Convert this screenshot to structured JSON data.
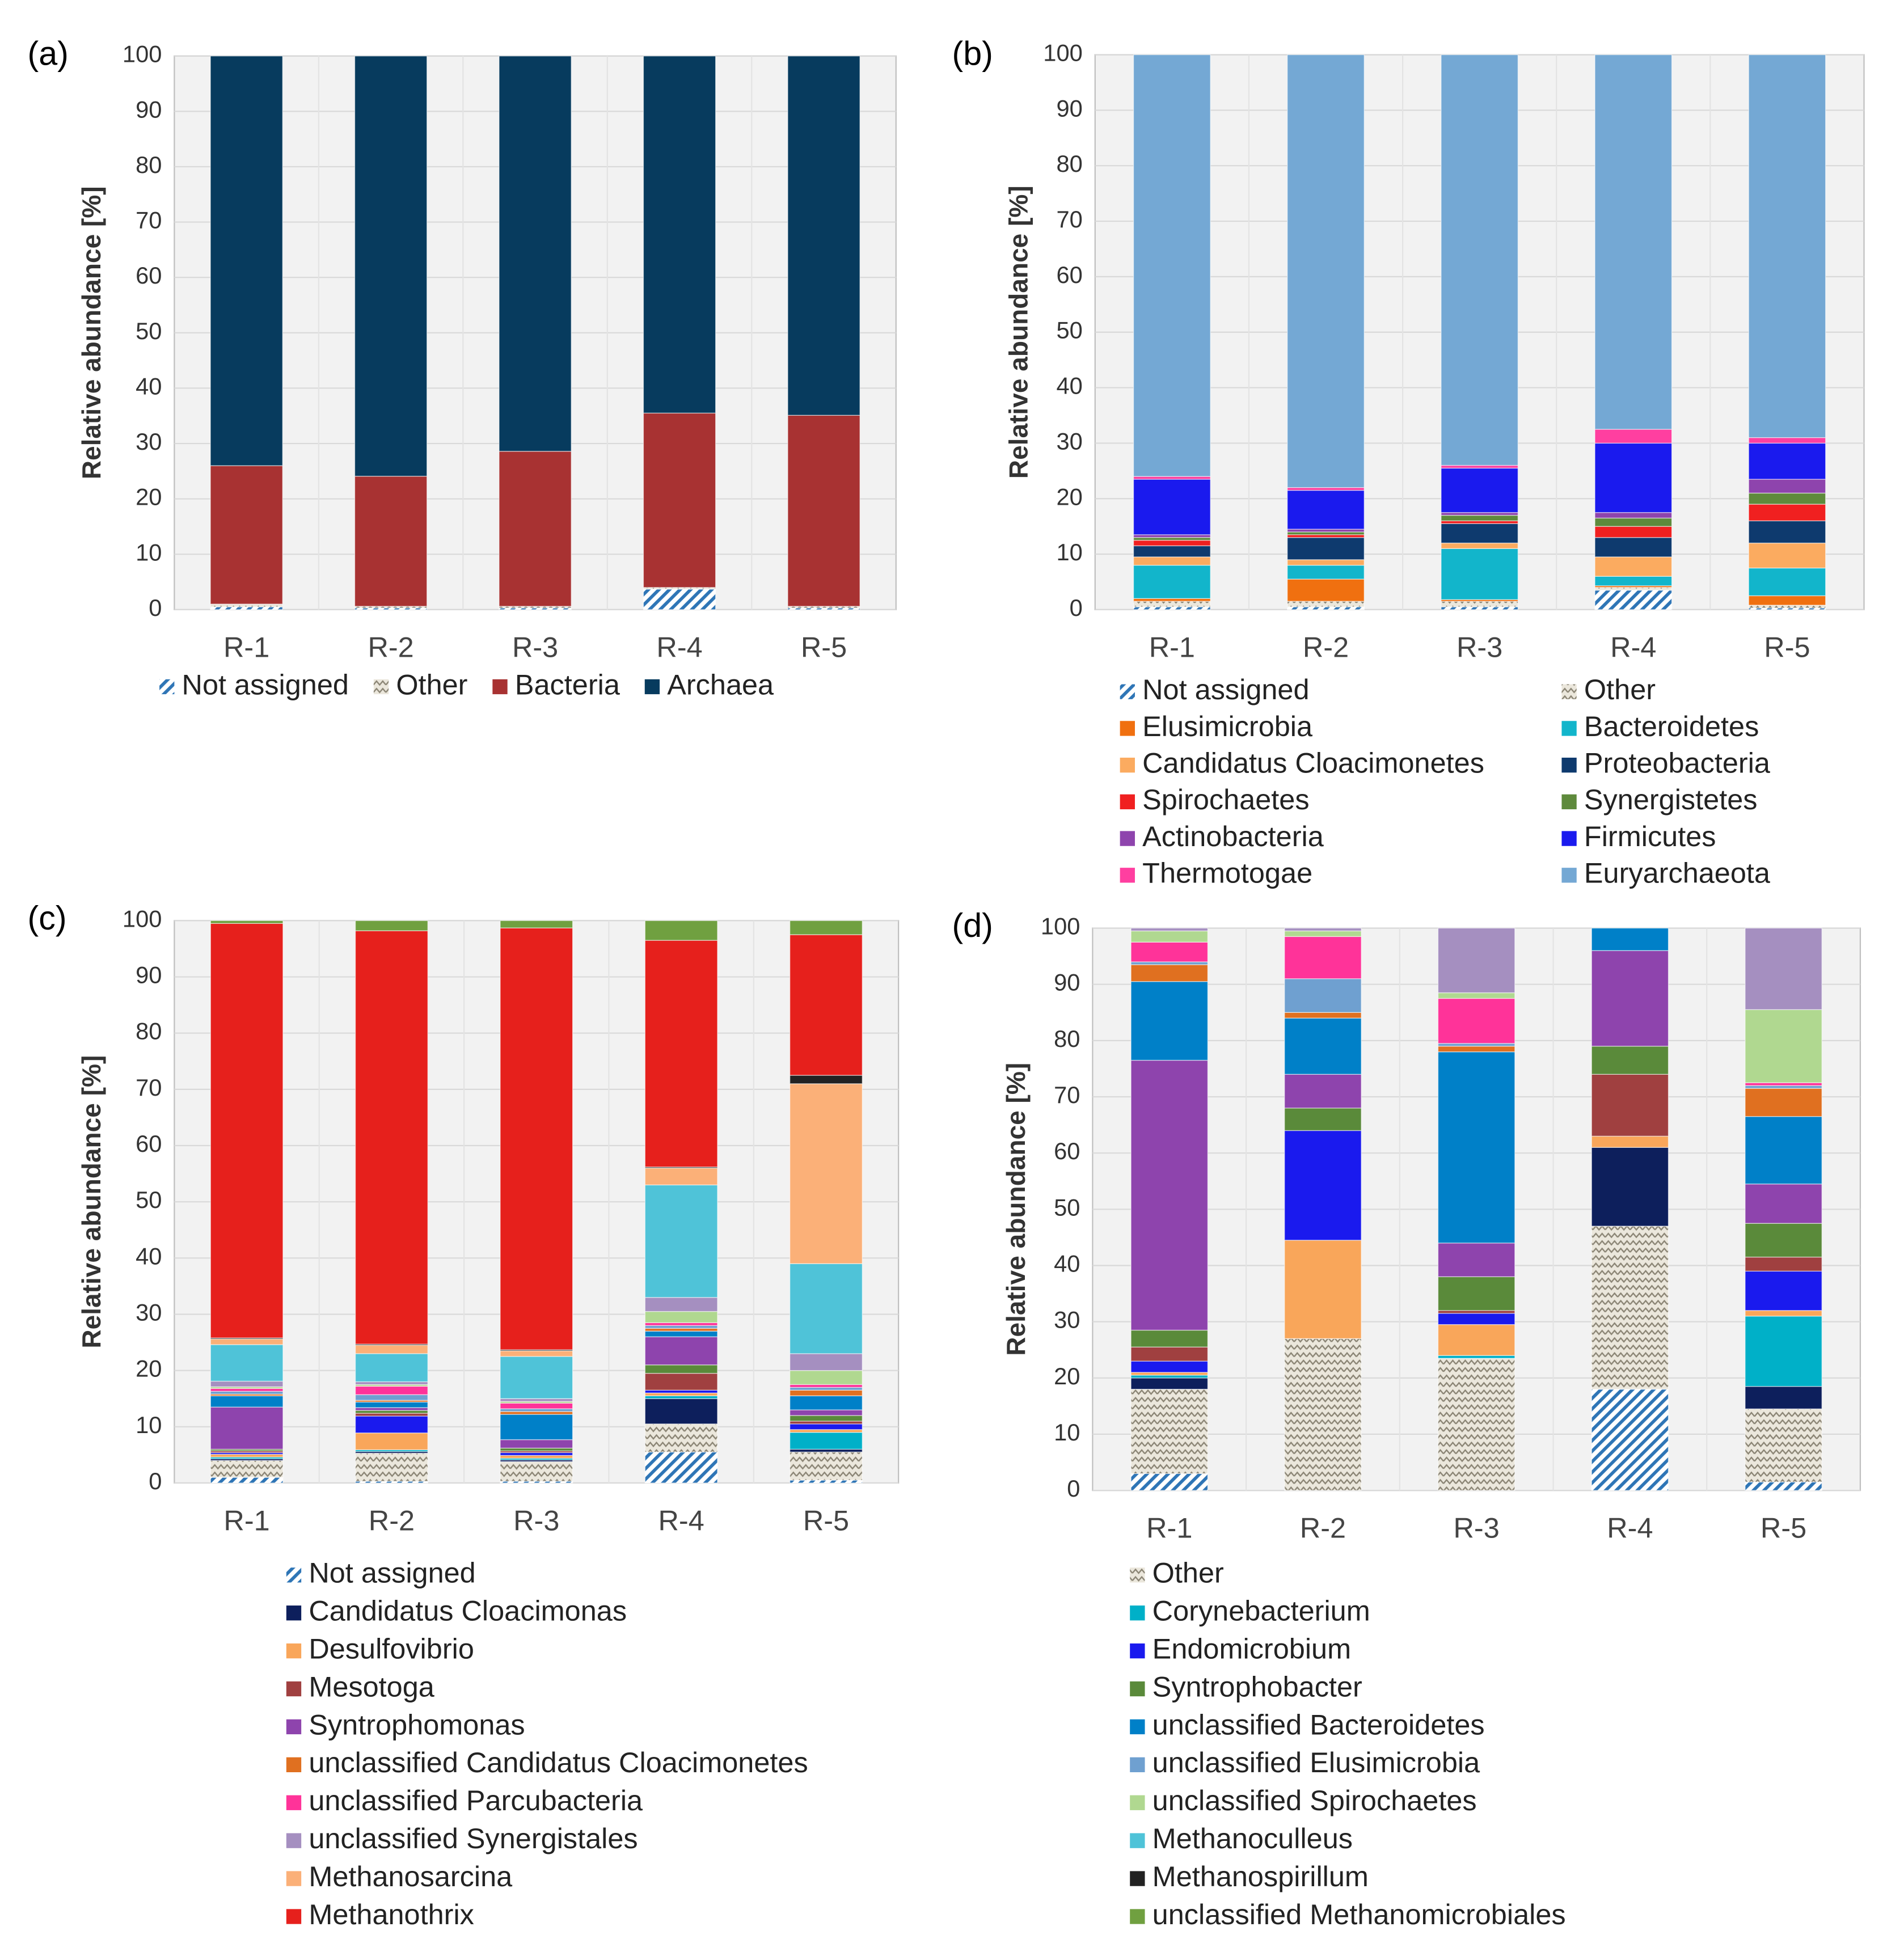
{
  "chart_data": [
    {
      "type": "bar",
      "stacked": true,
      "panel_label": "(a)",
      "ylabel": "Relative abundance [%]",
      "categories": [
        "R-1",
        "R-2",
        "R-3",
        "R-4",
        "R-5"
      ],
      "ylim": [
        0,
        100
      ],
      "yticks": [
        0,
        10,
        20,
        30,
        40,
        50,
        60,
        70,
        80,
        90,
        100
      ],
      "grid": true,
      "legend": "bottom",
      "series": [
        {
          "name": "Not assigned",
          "color": "#2e75b6",
          "pattern": "hatch",
          "values": [
            0.5,
            0.3,
            0.3,
            3.7,
            0.3
          ]
        },
        {
          "name": "Other",
          "color": "#8a8474",
          "pattern": "zigzag",
          "values": [
            0.5,
            0.3,
            0.3,
            0.3,
            0.3
          ]
        },
        {
          "name": "Bacteria",
          "color": "#a83232",
          "values": [
            25,
            23.5,
            28,
            31.5,
            34.5
          ]
        },
        {
          "name": "Archaea",
          "color": "#073b5e",
          "values": [
            74,
            75.9,
            71.4,
            64.5,
            64.9
          ]
        }
      ]
    },
    {
      "type": "bar",
      "stacked": true,
      "panel_label": "(b)",
      "ylabel": "Relative abundance [%]",
      "categories": [
        "R-1",
        "R-2",
        "R-3",
        "R-4",
        "R-5"
      ],
      "ylim": [
        0,
        100
      ],
      "yticks": [
        0,
        10,
        20,
        30,
        40,
        50,
        60,
        70,
        80,
        90,
        100
      ],
      "grid": true,
      "legend": "bottom",
      "series": [
        {
          "name": "Not assigned",
          "color": "#2e75b6",
          "pattern": "hatch",
          "values": [
            0.5,
            0.5,
            0.5,
            3.5,
            0.3
          ]
        },
        {
          "name": "Other",
          "color": "#8a8474",
          "pattern": "zigzag",
          "values": [
            1,
            1,
            1,
            0.5,
            0.5
          ]
        },
        {
          "name": "Elusimicrobia",
          "color": "#f07010",
          "values": [
            0.5,
            4,
            0.3,
            0.3,
            1.7
          ]
        },
        {
          "name": "Bacteroidetes",
          "color": "#12b5cb",
          "values": [
            6,
            2.5,
            9.2,
            1.7,
            5
          ]
        },
        {
          "name": "Candidatus Cloacimonetes",
          "color": "#fbab60",
          "values": [
            1.5,
            1,
            1,
            3.5,
            4.5
          ]
        },
        {
          "name": "Proteobacteria",
          "color": "#0e3a6e",
          "values": [
            2,
            4,
            3.5,
            3.5,
            4
          ]
        },
        {
          "name": "Spirochaetes",
          "color": "#f02020",
          "values": [
            1,
            0.5,
            0.5,
            2,
            3
          ]
        },
        {
          "name": "Synergistetes",
          "color": "#5e8a3c",
          "values": [
            0.5,
            0.5,
            1,
            1.5,
            2
          ]
        },
        {
          "name": "Actinobacteria",
          "color": "#8e44ad",
          "values": [
            0.5,
            0.5,
            0.5,
            1,
            2.5
          ]
        },
        {
          "name": "Firmicutes",
          "color": "#1a1aee",
          "values": [
            10,
            7,
            8,
            12.5,
            6.5
          ]
        },
        {
          "name": "Thermotogae",
          "color": "#ff3fa0",
          "values": [
            0.5,
            0.5,
            0.5,
            2.5,
            1
          ]
        },
        {
          "name": "Euryarchaeota",
          "color": "#74a8d4",
          "values": [
            76,
            78,
            74,
            67.5,
            69
          ]
        }
      ]
    },
    {
      "type": "bar",
      "stacked": true,
      "panel_label": "(c)",
      "ylabel": "Relative abundance [%]",
      "categories": [
        "R-1",
        "R-2",
        "R-3",
        "R-4",
        "R-5"
      ],
      "ylim": [
        0,
        100
      ],
      "yticks": [
        0,
        10,
        20,
        30,
        40,
        50,
        60,
        70,
        80,
        90,
        100
      ],
      "grid": true,
      "legend": "bottom",
      "series": [
        {
          "name": "Not assigned",
          "color": "#2e75b6",
          "pattern": "hatch",
          "values": [
            1,
            0.3,
            0.3,
            5.5,
            0.5
          ]
        },
        {
          "name": "Other",
          "color": "#8a8474",
          "pattern": "zigzag",
          "values": [
            3,
            5,
            3.5,
            5,
            5
          ]
        },
        {
          "name": "Candidatus Cloacimonas",
          "color": "#0d1f5c",
          "values": [
            0.3,
            0.3,
            0.3,
            4.5,
            0.5
          ]
        },
        {
          "name": "Corynebacterium",
          "color": "#00b0c8",
          "values": [
            0.3,
            0.3,
            0.3,
            0.5,
            3
          ]
        },
        {
          "name": "Desulfovibrio",
          "color": "#f9a65a",
          "values": [
            0.5,
            3,
            0.5,
            0.5,
            0.5
          ]
        },
        {
          "name": "Endomicrobium",
          "color": "#1a1aee",
          "values": [
            0.3,
            3,
            0.5,
            0.5,
            1
          ]
        },
        {
          "name": "Mesotoga",
          "color": "#a04040",
          "values": [
            0.3,
            0.5,
            0.3,
            3,
            0.5
          ]
        },
        {
          "name": "Syntrophobacter",
          "color": "#5a8a3a",
          "values": [
            0.3,
            0.5,
            0.5,
            1.5,
            1
          ]
        },
        {
          "name": "Syntrophomonas",
          "color": "#8e44ad",
          "values": [
            7.5,
            0.5,
            1.5,
            5,
            1
          ]
        },
        {
          "name": "unclassified Bacteroidetes",
          "color": "#0080c8",
          "values": [
            2,
            1,
            4.5,
            1,
            2.5
          ]
        },
        {
          "name": "unclassified Candidatus Cloacimonetes",
          "color": "#e07020",
          "values": [
            0.3,
            0.3,
            0.5,
            0.5,
            1
          ]
        },
        {
          "name": "unclassified Elusimicrobia",
          "color": "#6fa0d0",
          "values": [
            0.5,
            1,
            0.5,
            0.5,
            0.5
          ]
        },
        {
          "name": "unclassified Parcubacteria",
          "color": "#ff3399",
          "values": [
            0.5,
            1.5,
            1,
            0.5,
            0.5
          ]
        },
        {
          "name": "unclassified Spirochaetes",
          "color": "#b0d890",
          "values": [
            0.3,
            0.3,
            0.3,
            2,
            2.5
          ]
        },
        {
          "name": "unclassified Synergistales",
          "color": "#a58fc0",
          "values": [
            1,
            0.5,
            0.5,
            2.5,
            3
          ]
        },
        {
          "name": "Methanoculleus",
          "color": "#4fc3d8",
          "values": [
            6.5,
            5,
            7.5,
            20,
            16
          ]
        },
        {
          "name": "Methanosarcina",
          "color": "#fbb078",
          "values": [
            1,
            1.5,
            1,
            3,
            32
          ]
        },
        {
          "name": "Methanospirillum",
          "color": "#222222",
          "values": [
            0.2,
            0.2,
            0.2,
            0.2,
            1.5
          ]
        },
        {
          "name": "Methanothrix",
          "color": "#e6201c",
          "values": [
            73.7,
            73.5,
            75,
            40.3,
            25
          ]
        },
        {
          "name": "unclassified Methanomicrobiales",
          "color": "#70a040",
          "values": [
            0.5,
            1.8,
            1.3,
            3.5,
            2.5
          ]
        }
      ]
    },
    {
      "type": "bar",
      "stacked": true,
      "panel_label": "(d)",
      "ylabel": "Relative abundance [%]",
      "categories": [
        "R-1",
        "R-2",
        "R-3",
        "R-4",
        "R-5"
      ],
      "ylim": [
        0,
        100
      ],
      "yticks": [
        0,
        10,
        20,
        30,
        40,
        50,
        60,
        70,
        80,
        90,
        100
      ],
      "grid": true,
      "series": [
        {
          "values": [
            3,
            0,
            0,
            18,
            1.5
          ]
        },
        {
          "values": [
            15,
            27,
            23.5,
            29,
            13
          ]
        },
        {
          "values": [
            2,
            0,
            0,
            14,
            4
          ]
        },
        {
          "values": [
            0.5,
            0,
            0.5,
            0,
            12.5
          ]
        },
        {
          "values": [
            0.5,
            17.5,
            5.5,
            2,
            1
          ]
        },
        {
          "values": [
            2,
            19.5,
            2,
            0,
            7
          ]
        },
        {
          "values": [
            2.5,
            0,
            0.5,
            11,
            2.5
          ]
        },
        {
          "values": [
            3,
            4,
            6,
            5,
            6
          ]
        },
        {
          "values": [
            48,
            6,
            6,
            17,
            7
          ]
        },
        {
          "values": [
            14,
            10,
            34,
            4,
            12
          ]
        },
        {
          "values": [
            3,
            1,
            1,
            0,
            5
          ]
        },
        {
          "values": [
            0.5,
            6,
            0.5,
            0,
            0.5
          ]
        },
        {
          "values": [
            3.5,
            7.5,
            8,
            0,
            0.5
          ]
        },
        {
          "values": [
            2,
            1,
            1,
            0,
            13
          ]
        },
        {
          "values": [
            0.5,
            0.5,
            11.5,
            0,
            14.5
          ]
        },
        {
          "values": [
            0,
            0,
            0,
            0,
            0
          ]
        },
        {
          "values": [
            0,
            0,
            0,
            0,
            0
          ]
        },
        {
          "values": [
            0,
            0,
            0,
            0,
            0
          ]
        },
        {
          "values": [
            0,
            0,
            0,
            0,
            0
          ]
        },
        {
          "values": [
            0,
            0,
            0,
            0,
            0
          ]
        }
      ]
    }
  ]
}
